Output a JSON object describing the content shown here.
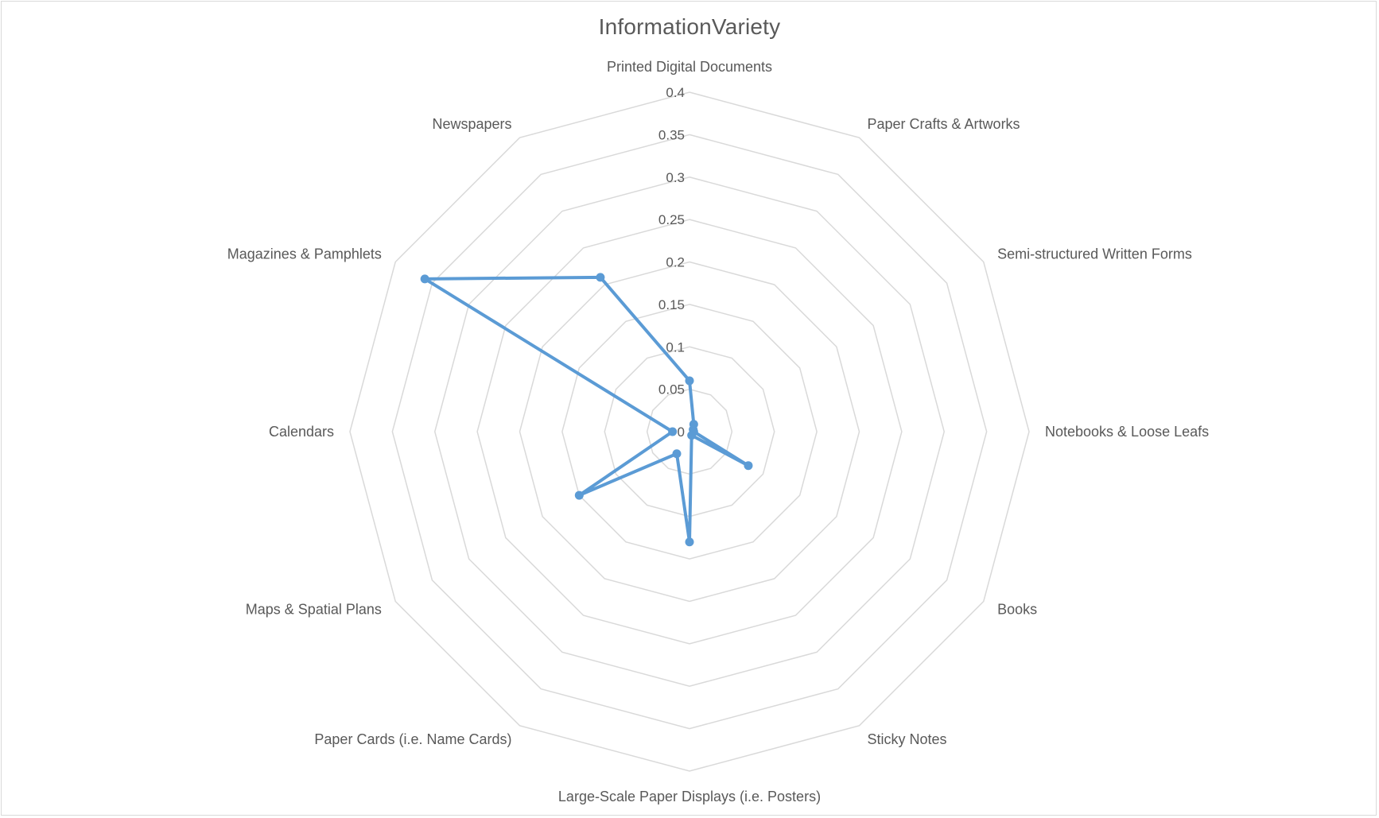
{
  "chart_data": {
    "type": "radar",
    "title": "InformationVariety",
    "categories": [
      "Printed Digital Documents",
      "Paper Crafts & Artworks",
      "Semi-structured Written Forms",
      "Notebooks & Loose Leafs",
      "Books",
      "Sticky Notes",
      "Large-Scale Paper Displays (i.e. Posters)",
      "Paper Cards (i.e. Name Cards)",
      "Maps & Spatial Plans",
      "Calendars",
      "Magazines & Pamphlets",
      "Newspapers"
    ],
    "series": [
      {
        "values": [
          0.06,
          0.01,
          0.005,
          0.005,
          0.08,
          0.005,
          0.13,
          0.03,
          0.15,
          0.02,
          0.36,
          0.21
        ]
      }
    ],
    "ylim": [
      0,
      0.4
    ],
    "ticks": [
      "0",
      "0.05",
      "0.1",
      "0.15",
      "0.2",
      "0.25",
      "0.3",
      "0.35",
      "0.4"
    ],
    "grid": true,
    "legend": "none",
    "colors": {
      "series": "#5b9bd5",
      "grid": "#d9d9d9",
      "text": "#595959"
    }
  }
}
